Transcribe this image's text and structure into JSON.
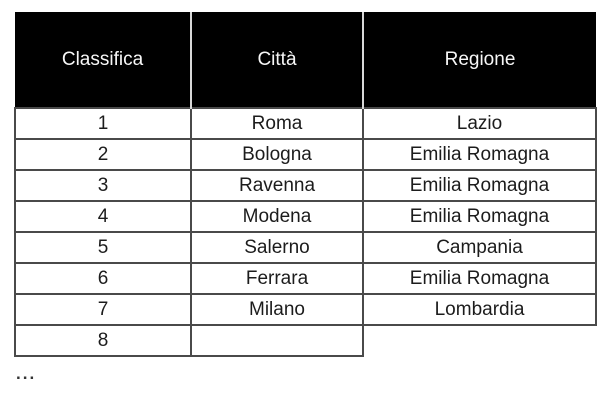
{
  "chart_data": {
    "type": "table",
    "columns": [
      "Classifica",
      "Città",
      "Regione"
    ],
    "rows": [
      [
        "1",
        "Roma",
        "Lazio"
      ],
      [
        "2",
        "Bologna",
        "Emilia Romagna"
      ],
      [
        "3",
        "Ravenna",
        "Emilia Romagna"
      ],
      [
        "4",
        "Modena",
        "Emilia Romagna"
      ],
      [
        "5",
        "Salerno",
        "Campania"
      ],
      [
        "6",
        "Ferrara",
        "Emilia Romagna"
      ],
      [
        "7",
        "Milano",
        "Lombardia"
      ],
      [
        "8",
        "",
        null
      ]
    ],
    "truncated_indicator": "..."
  },
  "colors": {
    "background": "#ffffff",
    "header_bg": "#000000",
    "header_text": "#f7f7f7",
    "header_separator": "#d8d8d8",
    "cell_border": "#4a4a4a",
    "body_text": "#1c1c1c",
    "ellipsis_text": "#333333"
  }
}
